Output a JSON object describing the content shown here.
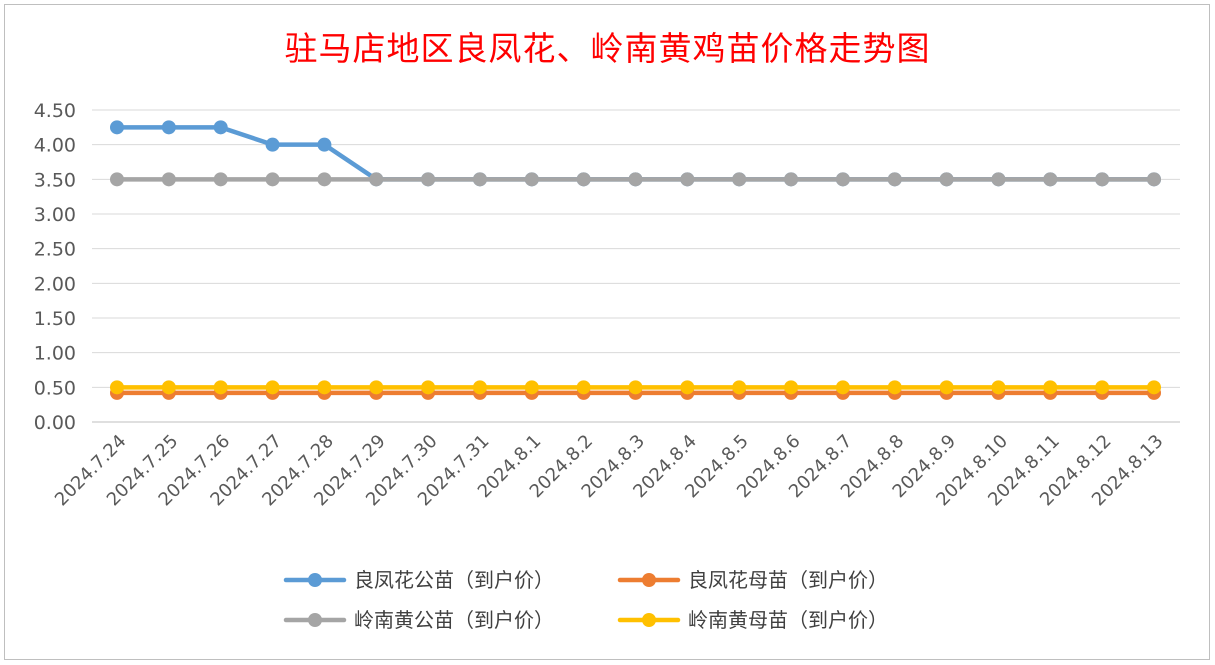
{
  "chart_data": {
    "type": "line",
    "title": "驻马店地区良凤花、岭南黄鸡苗价格走势图",
    "xlabel": "",
    "ylabel": "",
    "ylim": [
      0,
      4.5
    ],
    "yticks": [
      "0.00",
      "0.50",
      "1.00",
      "1.50",
      "2.00",
      "2.50",
      "3.00",
      "3.50",
      "4.00",
      "4.50"
    ],
    "categories": [
      "2024.7.24",
      "2024.7.25",
      "2024.7.26",
      "2024.7.27",
      "2024.7.28",
      "2024.7.29",
      "2024.7.30",
      "2024.7.31",
      "2024.8.1",
      "2024.8.2",
      "2024.8.3",
      "2024.8.4",
      "2024.8.5",
      "2024.8.6",
      "2024.8.7",
      "2024.8.8",
      "2024.8.9",
      "2024.8.10",
      "2024.8.11",
      "2024.8.12",
      "2024.8.13"
    ],
    "grid": true,
    "legend_position": "bottom",
    "series": [
      {
        "name": "良凤花公苗（到户价）",
        "color": "#5b9bd5",
        "values": [
          4.25,
          4.25,
          4.25,
          4.0,
          4.0,
          3.5,
          3.5,
          3.5,
          3.5,
          3.5,
          3.5,
          3.5,
          3.5,
          3.5,
          3.5,
          3.5,
          3.5,
          3.5,
          3.5,
          3.5,
          3.5
        ]
      },
      {
        "name": "良凤花母苗（到户价）",
        "color": "#ed7d31",
        "values": [
          0.42,
          0.42,
          0.42,
          0.42,
          0.42,
          0.42,
          0.42,
          0.42,
          0.42,
          0.42,
          0.42,
          0.42,
          0.42,
          0.42,
          0.42,
          0.42,
          0.42,
          0.42,
          0.42,
          0.42,
          0.42
        ]
      },
      {
        "name": "岭南黄公苗（到户价）",
        "color": "#a5a5a5",
        "values": [
          3.5,
          3.5,
          3.5,
          3.5,
          3.5,
          3.5,
          3.5,
          3.5,
          3.5,
          3.5,
          3.5,
          3.5,
          3.5,
          3.5,
          3.5,
          3.5,
          3.5,
          3.5,
          3.5,
          3.5,
          3.5
        ]
      },
      {
        "name": "岭南黄母苗（到户价）",
        "color": "#ffc000",
        "values": [
          0.5,
          0.5,
          0.5,
          0.5,
          0.5,
          0.5,
          0.5,
          0.5,
          0.5,
          0.5,
          0.5,
          0.5,
          0.5,
          0.5,
          0.5,
          0.5,
          0.5,
          0.5,
          0.5,
          0.5,
          0.5
        ]
      }
    ]
  }
}
